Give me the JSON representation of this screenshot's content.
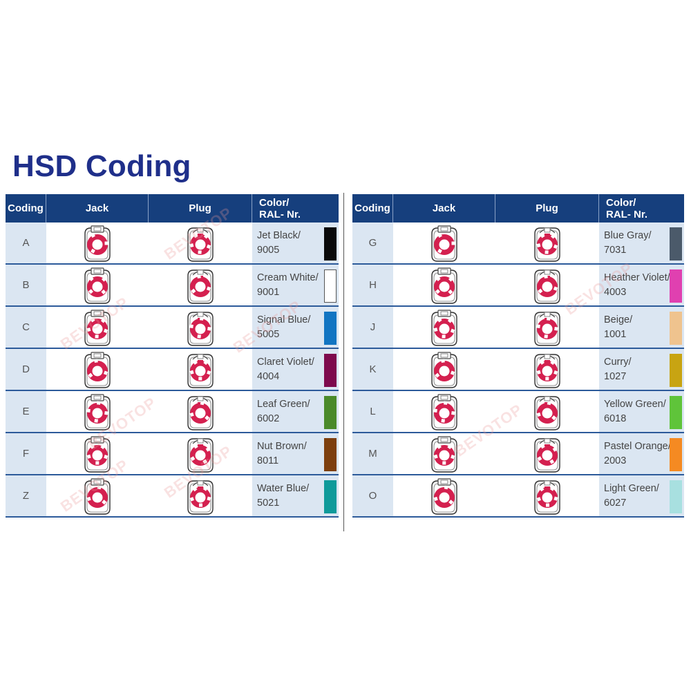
{
  "title": "HSD Coding",
  "headers": {
    "coding": "Coding",
    "jack": "Jack",
    "plug": "Plug",
    "color": "Color/\nRAL- Nr."
  },
  "watermark": "BEVOTOP",
  "colors": {
    "header_bg": "#163f7d",
    "cell_bg": "#dbe6f2",
    "connector_red": "#d4204f",
    "title": "#1f2f8a"
  },
  "left_rows": [
    {
      "code": "A",
      "color_name": "Jet Black/\n9005",
      "swatch": "#0a0a0a"
    },
    {
      "code": "B",
      "color_name": "Cream White/\n9001",
      "swatch": "#ffffff"
    },
    {
      "code": "C",
      "color_name": "Signal Blue/\n5005",
      "swatch": "#1275c2"
    },
    {
      "code": "D",
      "color_name": "Claret Violet/\n4004",
      "swatch": "#7e0a4d"
    },
    {
      "code": "E",
      "color_name": "Leaf Green/\n6002",
      "swatch": "#4b8a2a"
    },
    {
      "code": "F",
      "color_name": "Nut Brown/\n8011",
      "swatch": "#7d3f0e"
    },
    {
      "code": "Z",
      "color_name": "Water Blue/\n5021",
      "swatch": "#0f9a9a"
    }
  ],
  "right_rows": [
    {
      "code": "G",
      "color_name": "Blue Gray/\n7031",
      "swatch": "#4b5a6a"
    },
    {
      "code": "H",
      "color_name": "Heather Violet/\n4003",
      "swatch": "#e040b0"
    },
    {
      "code": "J",
      "color_name": "Beige/\n1001",
      "swatch": "#efc38e"
    },
    {
      "code": "K",
      "color_name": "Curry/\n1027",
      "swatch": "#c8a412"
    },
    {
      "code": "L",
      "color_name": "Yellow Green/\n6018",
      "swatch": "#5fc43a"
    },
    {
      "code": "M",
      "color_name": "Pastel Orange/\n2003",
      "swatch": "#f58a22"
    },
    {
      "code": "O",
      "color_name": "Light Green/\n6027",
      "swatch": "#a8e0e0"
    }
  ]
}
